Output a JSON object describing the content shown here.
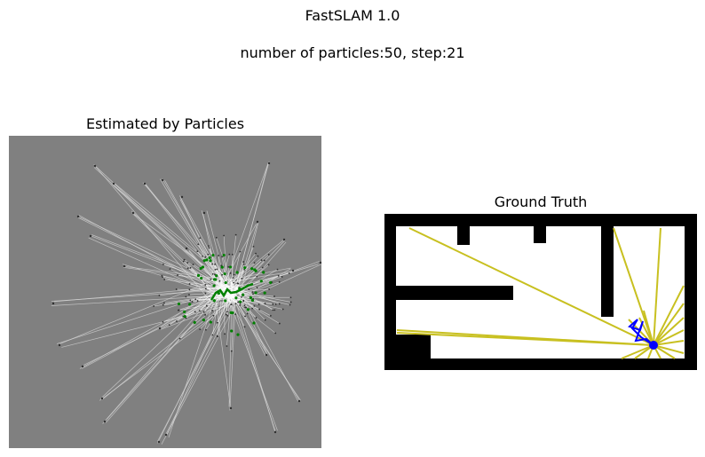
{
  "figure": {
    "title": "FastSLAM 1.0",
    "subtitle": "number of particles:50, step:21"
  },
  "chart_data": [
    {
      "type": "scatter",
      "title": "Estimated by Particles",
      "colors": {
        "background": "#808080",
        "rays": "#d8d8d8",
        "landmarks": "#303030",
        "particles": "#008000",
        "path": "#008000"
      },
      "particle_count": 50,
      "step": 21,
      "grid": false,
      "axes_visible": false
    },
    {
      "type": "scatter",
      "title": "Ground Truth",
      "colors": {
        "walls": "#000000",
        "free": "#ffffff",
        "rays": "#c8c020",
        "robot": "#0000ff",
        "path": "#0000ff"
      },
      "grid": false,
      "axes_visible": false
    }
  ]
}
